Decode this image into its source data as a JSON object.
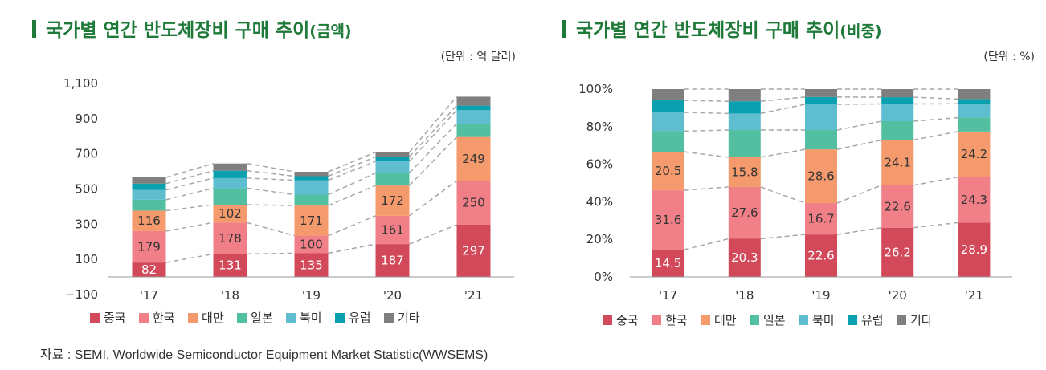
{
  "source": "자료 : SEMI, Worldwide Semiconductor Equipment Market Statistic(WWSEMS)",
  "chart_data": [
    {
      "type": "bar",
      "stacked": true,
      "title": "국가별 연간 반도체장비 구매 추이",
      "title_paren": "(금액)",
      "unit": "(단위 : 억 달러)",
      "categories": [
        "'17",
        "'18",
        "'19",
        "'20",
        "'21"
      ],
      "y_ticks": [
        "1,100",
        "900",
        "700",
        "500",
        "300",
        "100",
        "−100"
      ],
      "y_tick_values": [
        1100,
        900,
        700,
        500,
        300,
        100,
        -100
      ],
      "ylim": [
        -100,
        1100
      ],
      "series": [
        {
          "name": "중국",
          "color": "#d2495a",
          "values": [
            82,
            131,
            135,
            187,
            297
          ],
          "labels": [
            "82",
            "131",
            "135",
            "187",
            "297"
          ]
        },
        {
          "name": "한국",
          "color": "#f07f87",
          "values": [
            179,
            178,
            100,
            161,
            250
          ],
          "labels": [
            "179",
            "178",
            "100",
            "161",
            "250"
          ]
        },
        {
          "name": "대만",
          "color": "#f49a6c",
          "values": [
            116,
            102,
            171,
            172,
            249
          ],
          "labels": [
            "116",
            "102",
            "171",
            "172",
            "249"
          ]
        },
        {
          "name": "일본",
          "color": "#52c0a0",
          "values": [
            62,
            94,
            62,
            71,
            76
          ],
          "labels": []
        },
        {
          "name": "북미",
          "color": "#5fbdd0",
          "values": [
            56,
            57,
            82,
            66,
            76
          ],
          "labels": []
        },
        {
          "name": "유럽",
          "color": "#0aa0b0",
          "values": [
            36,
            42,
            23,
            26,
            26
          ],
          "labels": []
        },
        {
          "name": "기타",
          "color": "#7f7f7f",
          "values": [
            35,
            41,
            25,
            26,
            51
          ],
          "labels": []
        }
      ]
    },
    {
      "type": "bar",
      "stacked": true,
      "title": "국가별 연간 반도체장비 구매 추이",
      "title_paren": "(비중)",
      "unit": "(단위 : %)",
      "categories": [
        "'17",
        "'18",
        "'19",
        "'20",
        "'21"
      ],
      "y_ticks": [
        "100%",
        "80%",
        "60%",
        "40%",
        "20%",
        "0%"
      ],
      "y_tick_values": [
        100,
        80,
        60,
        40,
        20,
        0
      ],
      "ylim": [
        0,
        100
      ],
      "series": [
        {
          "name": "중국",
          "color": "#d2495a",
          "values": [
            14.5,
            20.3,
            22.6,
            26.2,
            28.9
          ],
          "labels": [
            "14.5",
            "20.3",
            "22.6",
            "26.2",
            "28.9"
          ]
        },
        {
          "name": "한국",
          "color": "#f07f87",
          "values": [
            31.6,
            27.6,
            16.7,
            22.6,
            24.3
          ],
          "labels": [
            "31.6",
            "27.6",
            "16.7",
            "22.6",
            "24.3"
          ]
        },
        {
          "name": "대만",
          "color": "#f49a6c",
          "values": [
            20.5,
            15.8,
            28.6,
            24.1,
            24.2
          ],
          "labels": [
            "20.5",
            "15.8",
            "28.6",
            "24.1",
            "24.2"
          ]
        },
        {
          "name": "일본",
          "color": "#52c0a0",
          "values": [
            11,
            14.5,
            10.3,
            10,
            7.4
          ],
          "labels": []
        },
        {
          "name": "북미",
          "color": "#5fbdd0",
          "values": [
            10,
            8.8,
            13.7,
            9.2,
            7.4
          ],
          "labels": []
        },
        {
          "name": "유럽",
          "color": "#0aa0b0",
          "values": [
            6.4,
            6.5,
            3.9,
            3.6,
            2.5
          ],
          "labels": []
        },
        {
          "name": "기타",
          "color": "#7f7f7f",
          "values": [
            6,
            6.5,
            4.2,
            4.3,
            5.3
          ],
          "labels": []
        }
      ]
    }
  ]
}
